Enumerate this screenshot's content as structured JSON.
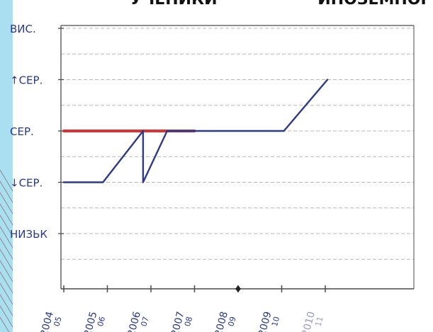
{
  "header": {
    "top_text_left": "УЧЕНИКИ",
    "top_text_right": "ИНОЗЕМНОЇ"
  },
  "chart_data": {
    "type": "line",
    "y_levels": [
      "НИЗЬК",
      "↓СЕР.",
      "СЕР.",
      "↑СЕР.",
      "ВИС."
    ],
    "y_tick_labels": [
      {
        "level": 4,
        "text": "ВИС."
      },
      {
        "level": 3,
        "text": "↑СЕР."
      },
      {
        "level": 2,
        "text": "СЕР."
      },
      {
        "level": 1,
        "text": "↓СЕР."
      },
      {
        "level": 0,
        "text": "НИЗЬК"
      }
    ],
    "x_tick_labels": [
      {
        "pos": 0,
        "top": "2004",
        "bottom": "05"
      },
      {
        "pos": 1,
        "top": "2005",
        "bottom": "06"
      },
      {
        "pos": 2,
        "top": "2006",
        "bottom": "07"
      },
      {
        "pos": 3,
        "top": "2007",
        "bottom": "08"
      },
      {
        "pos": 4,
        "top": "2008",
        "bottom": "09"
      },
      {
        "pos": 5,
        "top": "2009",
        "bottom": "10"
      },
      {
        "pos": 6,
        "top": "2010",
        "bottom": "11"
      }
    ],
    "grid": true,
    "series": [
      {
        "color": "#e23030",
        "points": [
          [
            0,
            2
          ],
          [
            3,
            2
          ]
        ]
      },
      {
        "color": "#2d3a8c",
        "points": [
          [
            0,
            1
          ],
          [
            0.9,
            1
          ],
          [
            1.82,
            2
          ],
          [
            1.82,
            1
          ],
          [
            2.37,
            2
          ],
          [
            3.0,
            2
          ],
          [
            5.0,
            2
          ],
          [
            5.05,
            2
          ],
          [
            6.05,
            3
          ]
        ]
      }
    ],
    "colors": {
      "axis": "#4a4a4a",
      "grid": "#b8b8b8",
      "text": "#2a3a8a",
      "text_faint": "#9a9ac8",
      "left_accent": "#a9dff1"
    }
  }
}
